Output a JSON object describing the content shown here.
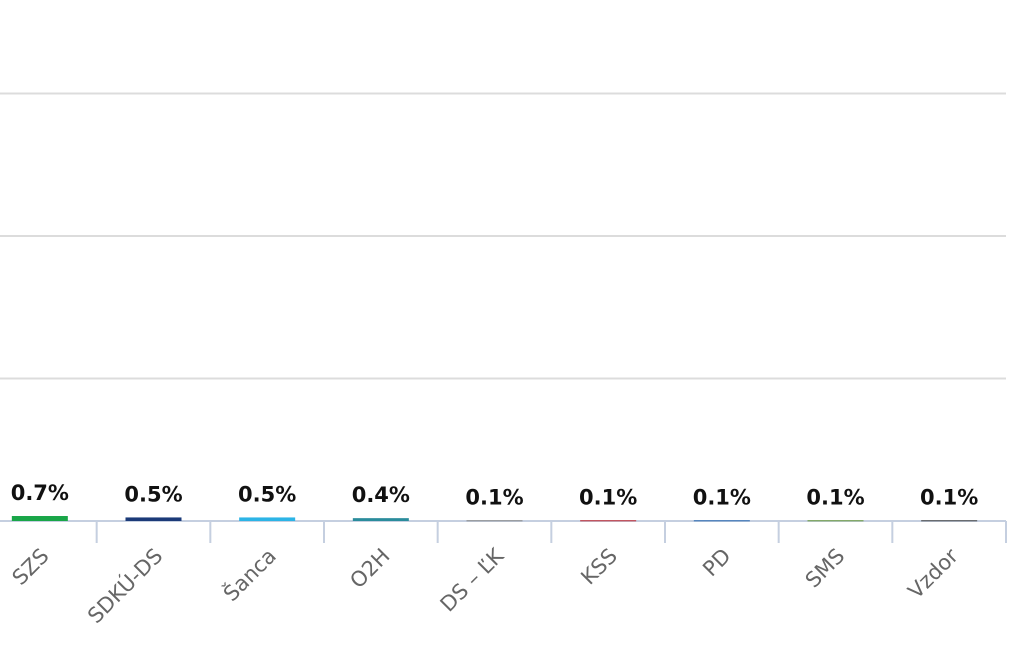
{
  "chart_data": {
    "type": "bar",
    "categories": [
      "SZS",
      "SDKÚ-DS",
      "Šanca",
      "O2H",
      "DS – ĽK",
      "KSS",
      "PD",
      "SMS",
      "Vzdor"
    ],
    "values": [
      0.7,
      0.5,
      0.5,
      0.4,
      0.1,
      0.1,
      0.1,
      0.1,
      0.1
    ],
    "value_labels": [
      "0.7%",
      "0.5%",
      "0.5%",
      "0.4%",
      "0.1%",
      "0.1%",
      "0.1%",
      "0.1%",
      "0.1%"
    ],
    "colors": [
      "#19a648",
      "#1b3a78",
      "#2cb4e6",
      "#2a8c9c",
      "#8a8a8a",
      "#c0262d",
      "#2a6ab0",
      "#6a9a3a",
      "#444444"
    ],
    "ylim": [
      0,
      73
    ],
    "yticks": [
      0,
      20,
      40,
      60
    ],
    "grid": true
  }
}
